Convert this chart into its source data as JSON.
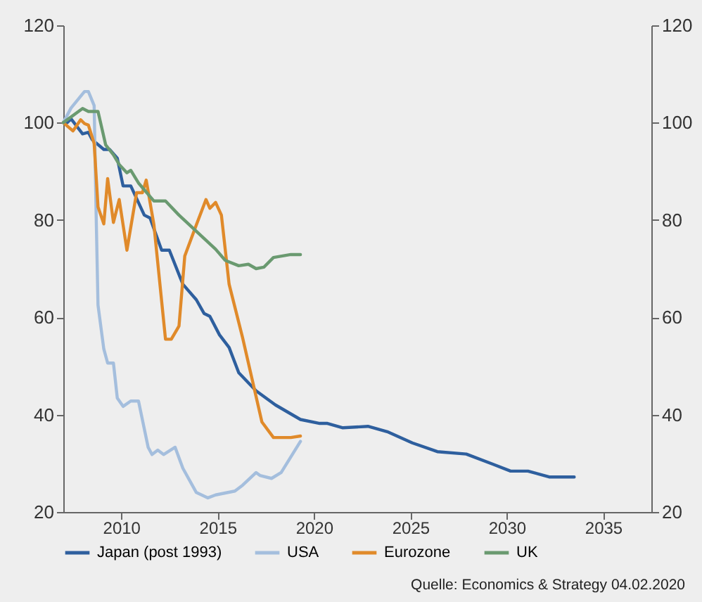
{
  "chart_data": {
    "type": "line",
    "xlim": [
      2007,
      2037.5
    ],
    "xticks": [
      2010,
      2015,
      2020,
      2025,
      2030,
      2035
    ],
    "ylim": [
      20,
      120
    ],
    "yticks": [
      20,
      40,
      60,
      80,
      100,
      120
    ],
    "y2lim": [
      20,
      120
    ],
    "y2ticks": [
      20,
      40,
      60,
      80,
      100,
      120
    ],
    "grid": false,
    "legend": "bottom",
    "annotations": [
      "Quelle: Economics & Strategy 04.02.2020"
    ],
    "series": [
      {
        "name": "Japan (post 1993)",
        "color": "#2e5f9e",
        "x": [
          2007.2,
          2007.4,
          2008.0,
          2008.3,
          2008.5,
          2009.1,
          2009.4,
          2009.8,
          2010.1,
          2010.5,
          2011.2,
          2011.5,
          2012.1,
          2012.5,
          2013.2,
          2013.9,
          2014.3,
          2014.6,
          2015.1,
          2015.6,
          2016.1,
          2017.0,
          2018.0,
          2019.3,
          2020.3,
          2020.7,
          2021.5,
          2022.8,
          2023.8,
          2025.1,
          2026.4,
          2027.9,
          2029.3,
          2030.2,
          2031.1,
          2032.2,
          2033.5
        ],
        "values": [
          100,
          100.8,
          97.7,
          98,
          96.5,
          94.5,
          94.5,
          92.7,
          87,
          87,
          81,
          80.4,
          73.8,
          73.8,
          66.8,
          63.6,
          60.8,
          60.2,
          56.4,
          53.8,
          48.6,
          44.9,
          42,
          39,
          38.2,
          38.2,
          37.3,
          37.6,
          36.5,
          34.2,
          32.4,
          31.9,
          29.8,
          28.4,
          28.4,
          27.2,
          27.2
        ]
      },
      {
        "name": "USA",
        "color": "#a4bedd",
        "x": [
          2007.0,
          2007.4,
          2008.1,
          2008.3,
          2008.6,
          2008.7,
          2008.8,
          2009.1,
          2009.3,
          2009.6,
          2009.8,
          2010.1,
          2010.5,
          2010.9,
          2011.4,
          2011.6,
          2011.9,
          2012.2,
          2012.8,
          2013.2,
          2013.9,
          2014.5,
          2014.9,
          2015.9,
          2016.3,
          2017.0,
          2017.2,
          2017.8,
          2018.3,
          2019.3
        ],
        "values": [
          100,
          103,
          106.4,
          106.4,
          103.5,
          81.8,
          62.5,
          53.5,
          50.6,
          50.6,
          43.4,
          41.7,
          42.8,
          42.8,
          33.3,
          31.8,
          32.7,
          31.8,
          33.3,
          29,
          24,
          22.9,
          23.5,
          24.3,
          25.5,
          28.1,
          27.5,
          26.9,
          28.1,
          34.5
        ]
      },
      {
        "name": "Eurozone",
        "color": "#e08a2a",
        "x": [
          2007.0,
          2007.5,
          2007.9,
          2008.1,
          2008.3,
          2008.6,
          2008.8,
          2009.1,
          2009.3,
          2009.6,
          2009.9,
          2010.3,
          2010.8,
          2011.1,
          2011.3,
          2011.7,
          2012.3,
          2012.6,
          2013.0,
          2013.3,
          2013.9,
          2014.4,
          2014.6,
          2014.9,
          2015.2,
          2015.6,
          2016.3,
          2017.3,
          2017.9,
          2018.8,
          2019.3
        ],
        "values": [
          100,
          98.3,
          100.6,
          99.8,
          99.5,
          95.7,
          82.7,
          79.2,
          88.5,
          79.5,
          84.2,
          73.8,
          85.6,
          85.6,
          88.2,
          79,
          55.5,
          55.5,
          58.2,
          72.6,
          79,
          84.2,
          82.4,
          83.6,
          81,
          66.8,
          55.8,
          38.5,
          35.3,
          35.3,
          35.6
        ]
      },
      {
        "name": "UK",
        "color": "#6a9a70",
        "x": [
          2007.0,
          2008.0,
          2008.3,
          2008.8,
          2009.2,
          2009.6,
          2009.9,
          2010.3,
          2010.5,
          2010.9,
          2011.7,
          2012.3,
          2013.0,
          2014.9,
          2015.4,
          2016.1,
          2016.6,
          2017.0,
          2017.4,
          2017.9,
          2018.8,
          2019.3
        ],
        "values": [
          100,
          102.9,
          102.3,
          102.3,
          95.4,
          93.4,
          91.4,
          89.7,
          90.2,
          87.6,
          83.9,
          83.9,
          81,
          74,
          71.7,
          70.6,
          70.9,
          70,
          70.3,
          72.3,
          72.9,
          72.9
        ]
      }
    ]
  }
}
